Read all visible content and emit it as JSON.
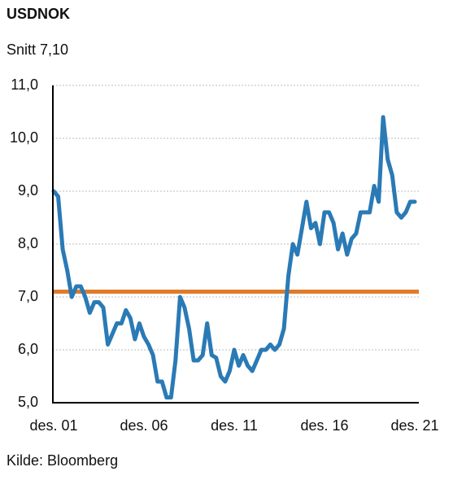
{
  "chart_data": {
    "type": "line",
    "title": "USDNOK",
    "subtitle": "Snitt 7,10",
    "source": "Kilde: Bloomberg",
    "categories": [
      "des. 01",
      null,
      null,
      null,
      null,
      null,
      null,
      null,
      null,
      null,
      null,
      null,
      null,
      null,
      null,
      null,
      null,
      null,
      null,
      null,
      "des. 06",
      null,
      null,
      null,
      null,
      null,
      null,
      null,
      null,
      null,
      null,
      null,
      null,
      null,
      null,
      null,
      null,
      null,
      null,
      null,
      "des. 11",
      null,
      null,
      null,
      null,
      null,
      null,
      null,
      null,
      null,
      null,
      null,
      null,
      null,
      null,
      null,
      null,
      null,
      null,
      null,
      "des. 16",
      null,
      null,
      null,
      null,
      null,
      null,
      null,
      null,
      null,
      null,
      null,
      null,
      null,
      null,
      null,
      null,
      null,
      null,
      null,
      "des. 21"
    ],
    "series": [
      {
        "color": "#2a7ab5",
        "values": [
          9.0,
          8.9,
          7.9,
          7.5,
          7.0,
          7.2,
          7.2,
          7.0,
          6.7,
          6.9,
          6.9,
          6.8,
          6.1,
          6.3,
          6.5,
          6.5,
          6.75,
          6.6,
          6.2,
          6.5,
          6.25,
          6.1,
          5.9,
          5.4,
          5.4,
          5.1,
          5.1,
          5.8,
          7.0,
          6.8,
          6.4,
          5.8,
          5.8,
          5.9,
          6.5,
          5.9,
          5.85,
          5.5,
          5.4,
          5.6,
          6.0,
          5.7,
          5.9,
          5.7,
          5.6,
          5.8,
          6.0,
          6.0,
          6.1,
          6.0,
          6.1,
          6.4,
          7.4,
          8.0,
          7.8,
          8.3,
          8.8,
          8.3,
          8.4,
          8.0,
          8.6,
          8.6,
          8.4,
          7.9,
          8.2,
          7.8,
          8.1,
          8.2,
          8.6,
          8.6,
          8.6,
          9.1,
          8.8,
          10.4,
          9.6,
          9.3,
          8.6,
          8.5,
          8.6,
          8.8,
          8.8
        ]
      }
    ],
    "reference_line": {
      "value": 7.1,
      "color": "#e07b2a"
    },
    "ylim": [
      5,
      11
    ],
    "yticks": [
      {
        "value": 5,
        "label": "5,0"
      },
      {
        "value": 6,
        "label": "6,0"
      },
      {
        "value": 7,
        "label": "7,0"
      },
      {
        "value": 8,
        "label": "8,0"
      },
      {
        "value": 9,
        "label": "9,0"
      },
      {
        "value": 10,
        "label": "10,0"
      },
      {
        "value": 11,
        "label": "11,0"
      }
    ],
    "grid": true
  }
}
